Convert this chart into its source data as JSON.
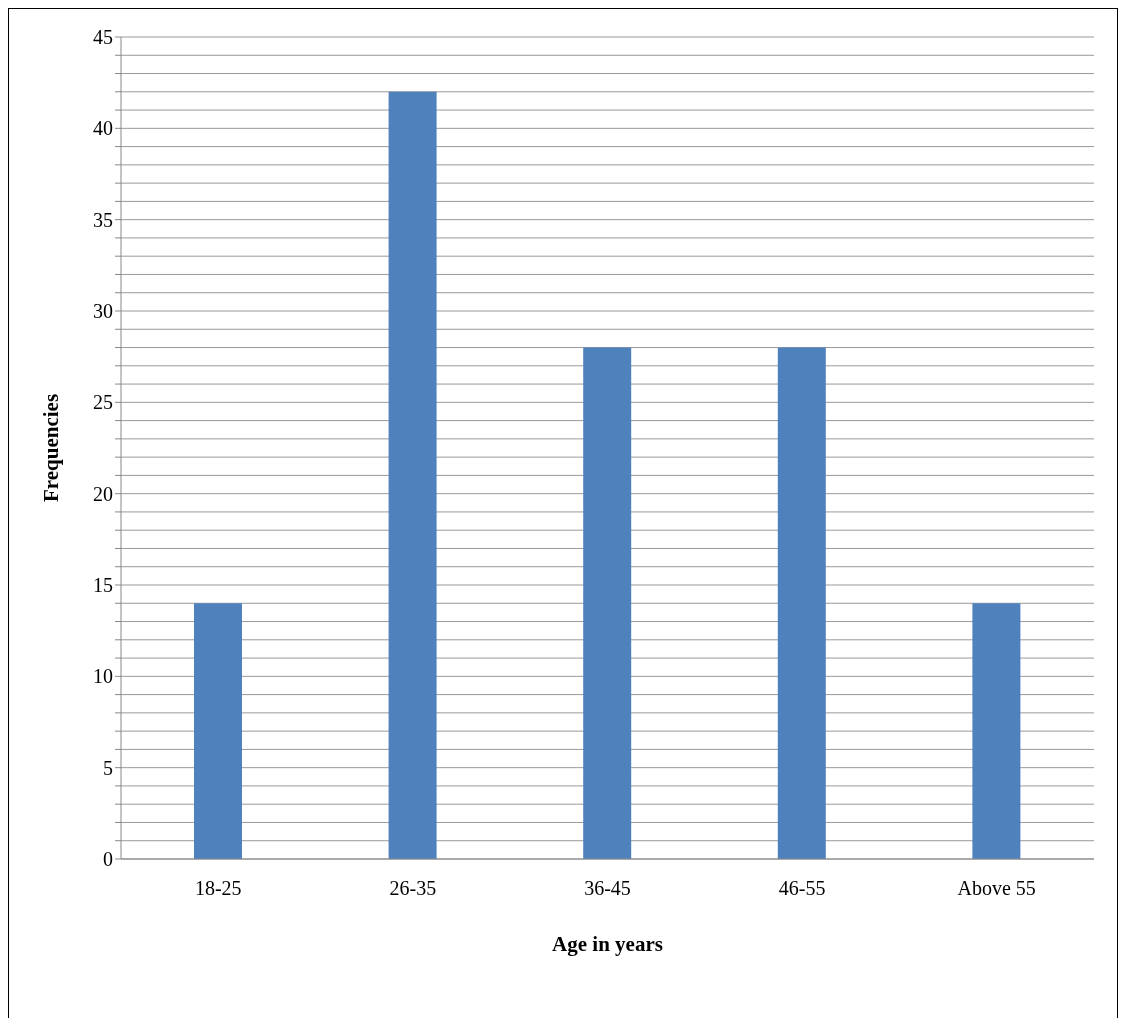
{
  "chart_data": {
    "type": "bar",
    "xlabel": "Age in years",
    "ylabel": "Frequencies",
    "categories": [
      "18-25",
      "26-35",
      "36-45",
      "46-55",
      "Above 55"
    ],
    "values": [
      14,
      42,
      28,
      28,
      14
    ],
    "color": "#4f81bd",
    "ylim": [
      0,
      45
    ],
    "yticks": [
      0,
      {
        "value": 1,
        "label": null
      },
      {
        "value": 2,
        "label": null
      },
      {
        "value": 3,
        "label": null
      },
      {
        "value": 4,
        "label": null
      },
      5,
      {
        "value": 6,
        "label": null
      },
      {
        "value": 7,
        "label": null
      },
      {
        "value": 8,
        "label": null
      },
      {
        "value": 9,
        "label": null
      },
      10,
      {
        "value": 11,
        "label": null
      },
      {
        "value": 12,
        "label": null
      },
      {
        "value": 13,
        "label": null
      },
      {
        "value": 14,
        "label": null
      },
      15,
      {
        "value": 16,
        "label": null
      },
      {
        "value": 17,
        "label": null
      },
      {
        "value": 18,
        "label": null
      },
      {
        "value": 19,
        "label": null
      },
      20,
      {
        "value": 21,
        "label": null
      },
      {
        "value": 22,
        "label": null
      },
      {
        "value": 23,
        "label": null
      },
      {
        "value": 24,
        "label": null
      },
      25,
      {
        "value": 26,
        "label": null
      },
      {
        "value": 27,
        "label": null
      },
      {
        "value": 28,
        "label": null
      },
      {
        "value": 29,
        "label": null
      },
      30,
      {
        "value": 31,
        "label": null
      },
      {
        "value": 32,
        "label": null
      },
      {
        "value": 33,
        "label": null
      },
      {
        "value": 34,
        "label": null
      },
      35,
      {
        "value": 36,
        "label": null
      },
      {
        "value": 37,
        "label": null
      },
      {
        "value": 38,
        "label": null
      },
      {
        "value": 39,
        "label": null
      },
      40,
      {
        "value": 41,
        "label": null
      },
      {
        "value": 42,
        "label": null
      },
      {
        "value": 43,
        "label": null
      },
      {
        "value": 44,
        "label": null
      },
      45
    ],
    "grid": "y"
  }
}
